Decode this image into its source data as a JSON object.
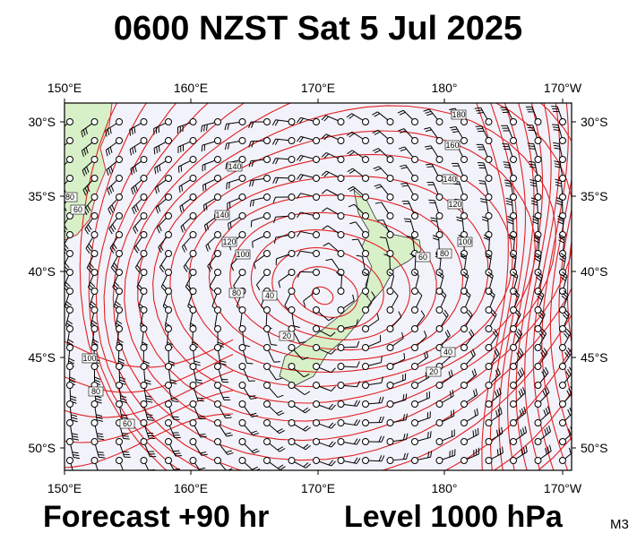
{
  "title": "0600 NZST Sat 5 Jul 2025",
  "footer": {
    "forecast": "Forecast +90 hr",
    "level": "Level 1000 hPa",
    "model": "M3"
  },
  "axes": {
    "longitude_top": [
      "150°E",
      "160°E",
      "170°E",
      "180°",
      "170°W"
    ],
    "longitude_bottom": [
      "150°E",
      "160°E",
      "170°E",
      "180°",
      "170°W"
    ],
    "latitude_left": [
      "30°S",
      "35°S",
      "40°S",
      "45°S",
      "50°S"
    ],
    "latitude_right": [
      "30°S",
      "35°S",
      "40°S",
      "45°S",
      "50°S"
    ]
  },
  "contour_labels": [
    "180",
    "160",
    "140",
    "120",
    "100",
    "80",
    "60",
    "40",
    "20",
    "140",
    "140",
    "120",
    "100",
    "80",
    "40",
    "20",
    "100",
    "80",
    "60",
    "80",
    "60"
  ]
}
